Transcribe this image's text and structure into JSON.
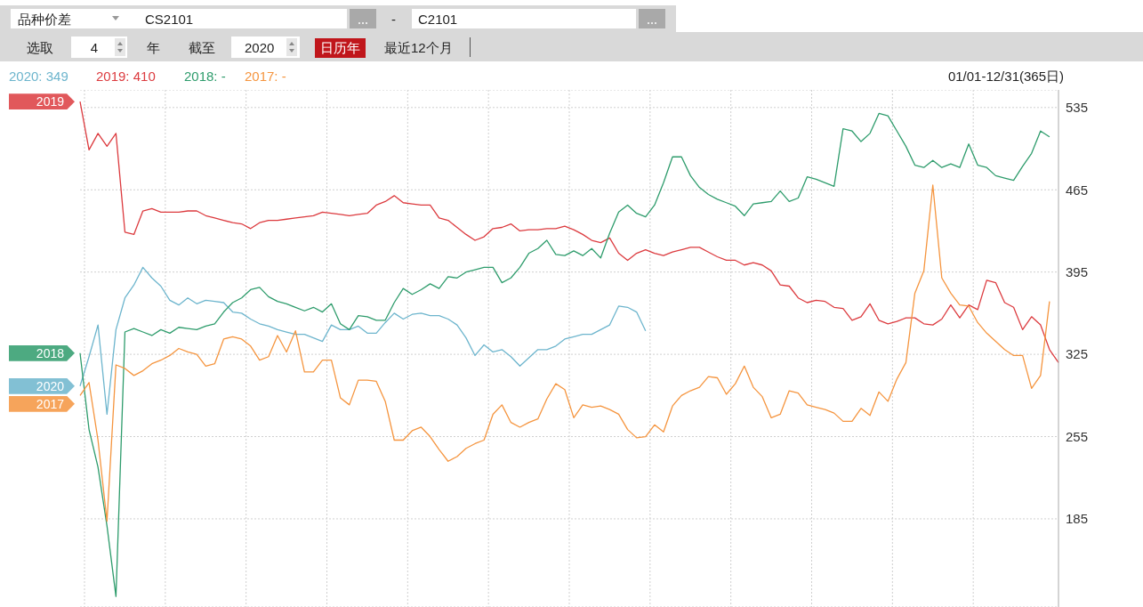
{
  "chart_data": {
    "type": "line",
    "annotations": [
      "品种价差",
      "CS2101",
      "-",
      "C2101",
      "选取",
      "4",
      "年",
      "截至",
      "2020",
      "日历年",
      "最近12个月",
      "2020: 349",
      "2019: 410",
      "2018: -",
      "2017: -",
      "01/01-12/31(365日)"
    ],
    "categories": [
      null,
      null,
      null,
      null,
      null,
      null,
      null,
      null,
      null,
      null,
      null,
      null,
      null,
      null,
      null,
      null,
      null,
      null,
      null,
      null,
      null,
      null,
      null,
      null,
      null,
      null,
      null,
      null,
      null,
      null,
      null,
      null,
      null,
      null,
      null,
      null,
      null,
      null,
      null,
      null,
      null,
      null,
      null,
      null,
      null,
      null,
      null,
      null,
      null,
      null,
      null,
      null,
      null,
      null,
      null,
      null,
      null,
      null,
      null,
      null,
      null,
      null,
      null,
      null,
      null,
      null,
      null,
      null,
      null,
      null,
      null,
      null,
      null,
      null,
      null,
      null,
      null,
      null,
      null,
      null,
      null,
      null,
      null,
      null,
      null,
      null,
      null,
      null,
      null,
      null,
      null,
      null,
      null,
      null,
      null,
      null,
      null,
      null,
      null,
      null,
      null,
      null,
      null,
      null,
      null,
      null,
      null,
      null,
      null,
      null
    ],
    "series": [
      {
        "name": "2020",
        "color": "#6db5cd",
        "values": [
          298,
          323,
          350,
          274,
          346,
          373,
          384,
          399,
          390,
          383,
          371,
          367,
          373,
          368,
          371,
          370,
          369,
          361,
          360,
          355,
          351,
          349,
          346,
          344,
          342,
          342,
          339,
          336,
          350,
          346,
          346,
          349,
          343,
          343,
          352,
          360,
          355,
          359,
          360,
          358,
          358,
          355,
          350,
          339,
          324,
          333,
          327,
          329,
          323,
          315,
          322,
          329,
          329,
          332,
          338,
          340,
          342,
          342,
          346,
          350,
          366,
          365,
          361,
          345,
          null,
          null,
          null,
          null,
          null,
          null,
          null,
          null,
          null,
          null,
          null,
          null,
          null,
          null,
          null,
          null,
          null,
          null,
          null,
          null,
          null,
          null,
          null,
          null,
          null,
          null,
          null,
          null,
          null,
          null,
          null,
          null,
          null,
          null,
          null,
          null,
          null,
          null,
          null,
          null,
          null,
          null,
          null,
          null,
          null,
          null
        ]
      },
      {
        "name": "2019",
        "color": "#dc3b3f",
        "values": [
          540,
          499,
          513,
          502,
          513,
          429,
          427,
          447,
          449,
          446,
          446,
          446,
          447,
          447,
          443,
          441,
          439,
          437,
          436,
          432,
          437,
          439,
          439,
          440,
          441,
          442,
          443,
          446,
          445,
          444,
          443,
          444,
          445,
          452,
          455,
          460,
          454,
          453,
          452,
          452,
          441,
          439,
          433,
          427,
          422,
          425,
          432,
          433,
          436,
          430,
          431,
          431,
          432,
          432,
          434,
          431,
          427,
          422,
          420,
          424,
          411,
          405,
          411,
          414,
          411,
          409,
          412,
          414,
          416,
          416,
          412,
          408,
          405,
          405,
          401,
          403,
          401,
          396,
          384,
          383,
          373,
          369,
          371,
          370,
          365,
          364,
          354,
          357,
          368,
          354,
          351,
          353,
          356,
          356,
          351,
          350,
          355,
          367,
          356,
          367,
          363,
          388,
          386,
          369,
          365,
          346,
          357,
          350,
          329,
          318
        ]
      },
      {
        "name": "2018",
        "color": "#2e9c6c",
        "values": [
          326,
          261,
          229,
          179,
          119,
          344,
          347,
          344,
          341,
          346,
          343,
          348,
          347,
          346,
          349,
          351,
          361,
          369,
          373,
          380,
          382,
          374,
          370,
          368,
          365,
          362,
          365,
          361,
          368,
          351,
          346,
          358,
          357,
          354,
          354,
          369,
          381,
          376,
          380,
          385,
          381,
          391,
          390,
          395,
          397,
          399,
          399,
          386,
          390,
          399,
          411,
          415,
          422,
          410,
          409,
          413,
          409,
          415,
          407,
          428,
          446,
          452,
          445,
          442,
          452,
          471,
          493,
          493,
          477,
          467,
          461,
          457,
          454,
          451,
          443,
          453,
          454,
          455,
          464,
          455,
          458,
          476,
          474,
          471,
          468,
          517,
          515,
          506,
          513,
          530,
          528,
          515,
          502,
          486,
          484,
          490,
          484,
          487,
          484,
          504,
          486,
          484,
          477,
          475,
          473,
          485,
          496,
          515,
          510,
          null
        ]
      },
      {
        "name": "2017",
        "color": "#f5953f",
        "values": [
          290,
          301,
          252,
          183,
          316,
          313,
          307,
          311,
          317,
          320,
          324,
          330,
          327,
          325,
          315,
          317,
          338,
          340,
          338,
          332,
          320,
          323,
          341,
          327,
          345,
          310,
          310,
          320,
          320,
          288,
          282,
          303,
          303,
          302,
          285,
          252,
          252,
          260,
          263,
          255,
          244,
          234,
          238,
          245,
          249,
          252,
          274,
          282,
          267,
          263,
          267,
          270,
          287,
          300,
          295,
          271,
          282,
          280,
          281,
          278,
          274,
          261,
          254,
          255,
          265,
          259,
          281,
          290,
          294,
          297,
          306,
          305,
          291,
          300,
          315,
          297,
          289,
          271,
          274,
          294,
          292,
          282,
          280,
          278,
          275,
          268,
          268,
          279,
          273,
          293,
          285,
          304,
          318,
          377,
          396,
          469,
          390,
          377,
          367,
          366,
          352,
          343,
          336,
          329,
          324,
          324,
          296,
          307,
          370,
          null
        ]
      }
    ],
    "ylim": [
      110,
      550
    ],
    "yticks": [
      185,
      255,
      325,
      395,
      465,
      535
    ],
    "tick_labels": "y",
    "grid": true,
    "legend": "left",
    "line_style": "solid"
  }
}
